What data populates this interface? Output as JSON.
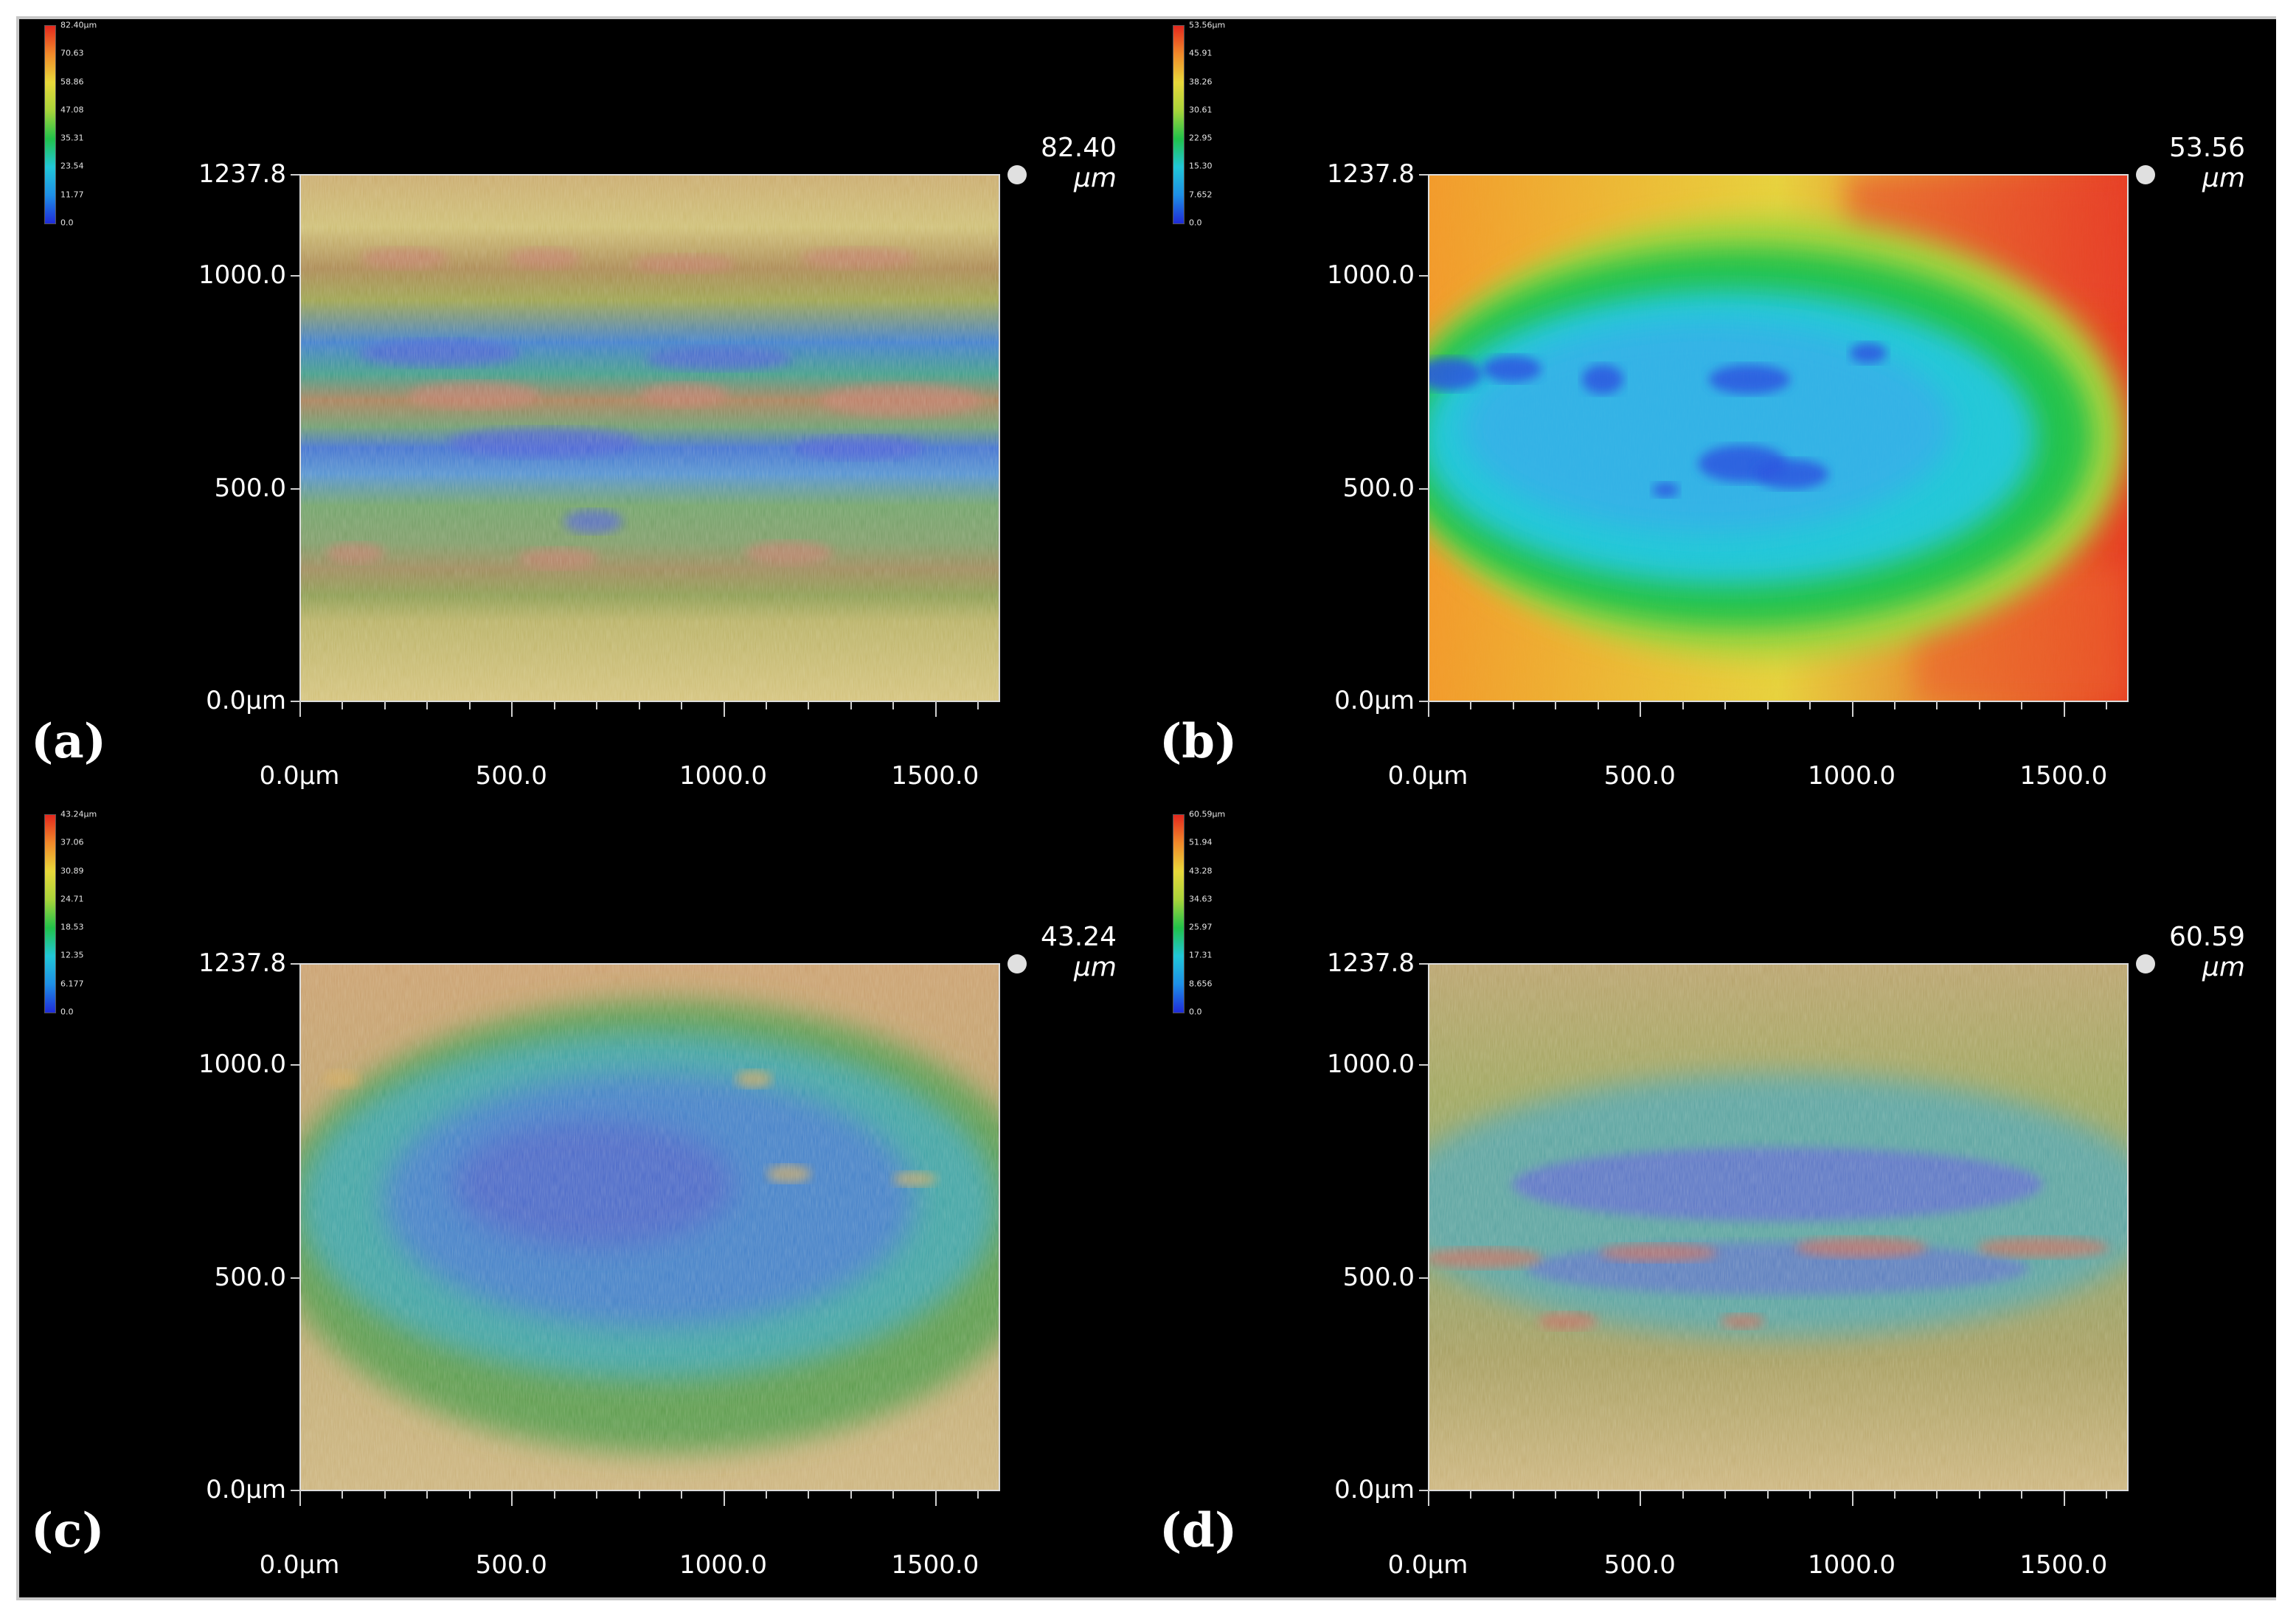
{
  "panels": [
    {
      "id": "a",
      "letter": "(a)",
      "zmax": "82.40",
      "zunit": "μm",
      "colorbar": [
        "82.40μm",
        "70.63",
        "58.86",
        "47.08",
        "35.31",
        "23.54",
        "11.77",
        "0.0"
      ],
      "pattern": "banded",
      "yticks": [
        "1237.8",
        "1000.0",
        "500.0",
        "0.0μm"
      ],
      "xticks": [
        "0.0μm",
        "500.0",
        "1000.0",
        "1500.0"
      ]
    },
    {
      "id": "b",
      "letter": "(b)",
      "zmax": "53.56",
      "zunit": "μm",
      "colorbar": [
        "53.56μm",
        "45.91",
        "38.26",
        "30.61",
        "22.95",
        "15.30",
        "7.652",
        "0.0"
      ],
      "pattern": "smooth-bowl",
      "yticks": [
        "1237.8",
        "1000.0",
        "500.0",
        "0.0μm"
      ],
      "xticks": [
        "0.0μm",
        "500.0",
        "1000.0",
        "1500.0"
      ]
    },
    {
      "id": "c",
      "letter": "(c)",
      "zmax": "43.24",
      "zunit": "μm",
      "colorbar": [
        "43.24μm",
        "37.06",
        "30.89",
        "24.71",
        "18.53",
        "12.35",
        "6.177",
        "0.0"
      ],
      "pattern": "textured-bowl",
      "yticks": [
        "1237.8",
        "1000.0",
        "500.0",
        "0.0μm"
      ],
      "xticks": [
        "0.0μm",
        "500.0",
        "1000.0",
        "1500.0"
      ]
    },
    {
      "id": "d",
      "letter": "(d)",
      "zmax": "60.59",
      "zunit": "μm",
      "colorbar": [
        "60.59μm",
        "51.94",
        "43.28",
        "34.63",
        "25.97",
        "17.31",
        "8.656",
        "0.0"
      ],
      "pattern": "central-band",
      "yticks": [
        "1237.8",
        "1000.0",
        "500.0",
        "0.0μm"
      ],
      "xticks": [
        "0.0μm",
        "500.0",
        "1000.0",
        "1500.0"
      ]
    }
  ],
  "colors": {
    "background": "#000000",
    "frame": "#c8c8c8",
    "colormap": [
      "#1f2bd8",
      "#1e8fe6",
      "#21c7d8",
      "#21c24a",
      "#a8d43a",
      "#e8d83a",
      "#f08a2a",
      "#e4281e"
    ]
  }
}
